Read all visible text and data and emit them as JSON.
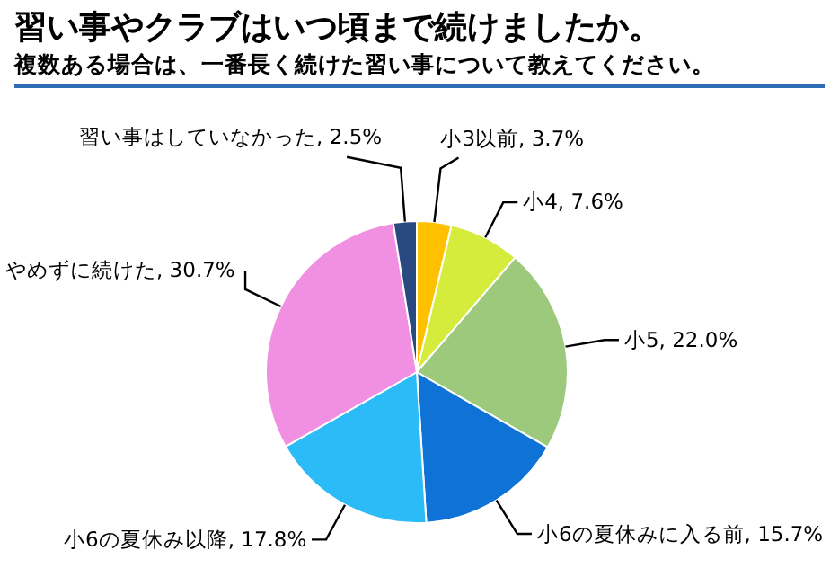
{
  "chart_data": {
    "type": "pie",
    "title": "習い事やクラブはいつ頃まで続けましたか。",
    "subtitle": "複数ある場合は、一番長く続けた習い事について教えてください。",
    "categories": [
      "小3以前",
      "小4",
      "小5",
      "小6の夏休みに入る前",
      "小6の夏休み以降",
      "やめずに続けた",
      "習い事はしていなかった"
    ],
    "values": [
      3.7,
      7.6,
      22.0,
      15.7,
      17.8,
      30.7,
      2.5
    ],
    "value_labels": [
      "3.7%",
      "7.6%",
      "22.0%",
      "15.7%",
      "17.8%",
      "30.7%",
      "2.5%"
    ],
    "colors": [
      "#ffc000",
      "#d6ec3c",
      "#9cc97c",
      "#0f72d6",
      "#2bbcf8",
      "#f18fe2",
      "#284a80"
    ]
  }
}
